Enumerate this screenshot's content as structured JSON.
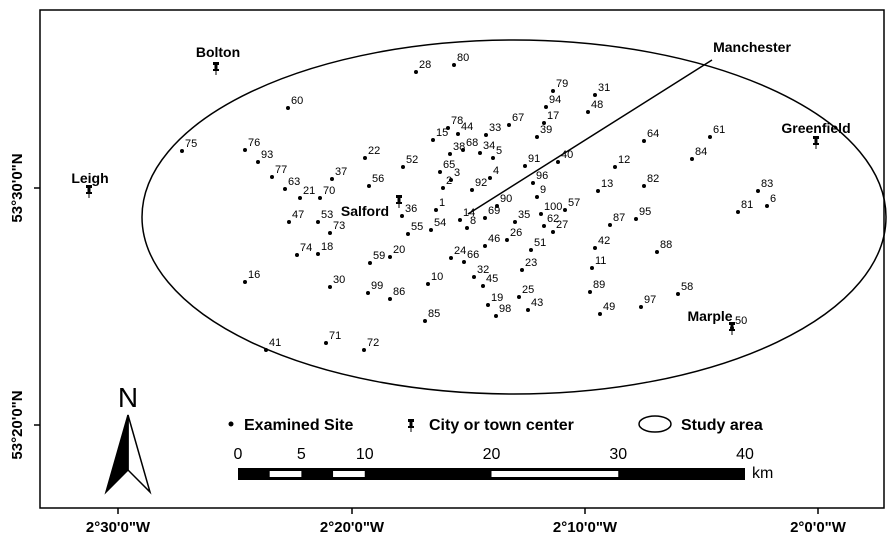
{
  "map": {
    "x_axis_labels": [
      "2°30'0\"W",
      "2°20'0\"W",
      "2°10'0\"W",
      "2°0'0\"W"
    ],
    "y_axis_labels": [
      "53°30'0\"N",
      "53°20'0\"N"
    ],
    "cities": [
      "Bolton",
      "Leigh",
      "Manchester",
      "Greenfield",
      "Salford",
      "Marple"
    ],
    "sites": [
      "28",
      "80",
      "60",
      "75",
      "76",
      "93",
      "77",
      "63",
      "21",
      "70",
      "37",
      "22",
      "52",
      "56",
      "47",
      "53",
      "73",
      "74",
      "18",
      "16",
      "30",
      "59",
      "20",
      "99",
      "86",
      "10",
      "85",
      "71",
      "72",
      "41",
      "36",
      "55",
      "1",
      "54",
      "2",
      "3",
      "65",
      "15",
      "38",
      "78",
      "44",
      "68",
      "33",
      "34",
      "5",
      "67",
      "4",
      "92",
      "14",
      "8",
      "90",
      "69",
      "24",
      "66",
      "46",
      "26",
      "32",
      "45",
      "35",
      "9",
      "96",
      "91",
      "100",
      "62",
      "27",
      "57",
      "51",
      "23",
      "25",
      "43",
      "19",
      "98",
      "40",
      "39",
      "17",
      "94",
      "79",
      "31",
      "48",
      "64",
      "12",
      "13",
      "82",
      "87",
      "95",
      "42",
      "11",
      "88",
      "89",
      "58",
      "97",
      "49",
      "61",
      "84",
      "83",
      "6",
      "81",
      "50"
    ],
    "legend": [
      "Examined Site",
      "City or town center",
      "Study area"
    ],
    "north": "N",
    "scale_bar": {
      "ticks": [
        0,
        5,
        10,
        20,
        30,
        40
      ],
      "max": 40,
      "unit": "km"
    }
  }
}
